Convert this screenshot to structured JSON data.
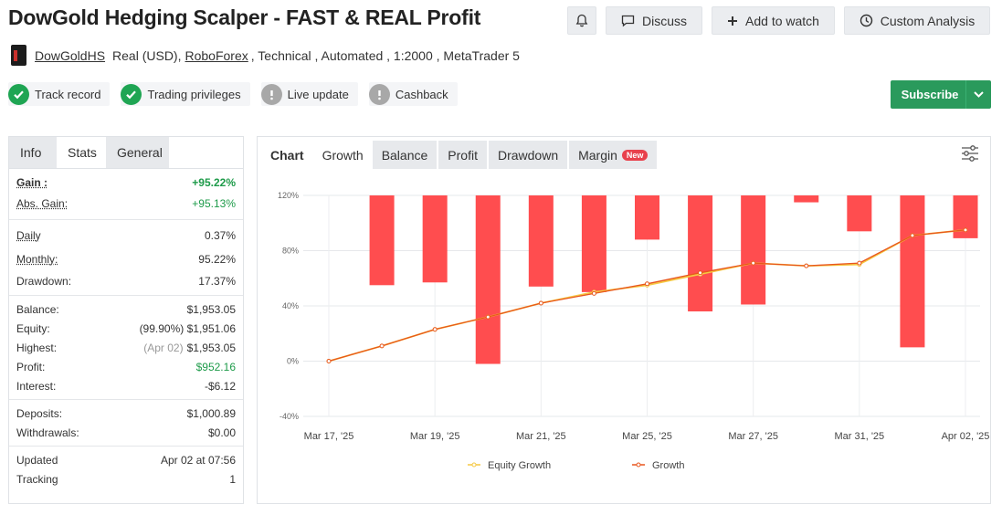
{
  "header": {
    "title": "DowGold Hedging Scalper - FAST & REAL Profit",
    "discuss_label": "Discuss",
    "watch_label": "Add to watch",
    "analysis_label": "Custom Analysis"
  },
  "meta": {
    "author": "DowGoldHS",
    "account": "Real (USD),",
    "broker": "RoboForex",
    "details": ", Technical , Automated , 1:2000 , MetaTrader 5"
  },
  "badges": [
    {
      "label": "Track record",
      "status": "ok"
    },
    {
      "label": "Trading privileges",
      "status": "ok"
    },
    {
      "label": "Live update",
      "status": "warn"
    },
    {
      "label": "Cashback",
      "status": "warn"
    }
  ],
  "subscribe_label": "Subscribe",
  "stats_tabs": [
    "Info",
    "Stats",
    "General"
  ],
  "stats": {
    "gain_label": "Gain :",
    "gain": "+95.22%",
    "abs_gain_label": "Abs. Gain:",
    "abs_gain": "+95.13%",
    "daily_label": "Daily",
    "daily": "0.37%",
    "monthly_label": "Monthly:",
    "monthly": "95.22%",
    "drawdown_label": "Drawdown:",
    "drawdown": "17.37%",
    "balance_label": "Balance:",
    "balance": "$1,953.05",
    "equity_label": "Equity:",
    "equity_pct": "(99.90%)",
    "equity": "$1,951.06",
    "highest_label": "Highest:",
    "highest_date": "(Apr 02)",
    "highest": "$1,953.05",
    "profit_label": "Profit:",
    "profit": "$952.16",
    "interest_label": "Interest:",
    "interest": "-$6.12",
    "deposits_label": "Deposits:",
    "deposits": "$1,000.89",
    "withdrawals_label": "Withdrawals:",
    "withdrawals": "$0.00",
    "updated_label": "Updated",
    "updated": "Apr 02 at 07:56",
    "tracking_label": "Tracking",
    "tracking": "1"
  },
  "chart_tabs": {
    "chart": "Chart",
    "growth": "Growth",
    "balance": "Balance",
    "profit": "Profit",
    "drawdown": "Drawdown",
    "margin": "Margin",
    "new": "New"
  },
  "colors": {
    "accent_green": "#2a9a5c",
    "bar_red": "#ff4d4f",
    "equity_line": "#f5c842",
    "growth_line": "#e8561e"
  },
  "chart_data": {
    "type": "line",
    "y_ticks": [
      "120%",
      "80%",
      "40%",
      "0%",
      "-40%"
    ],
    "ylim": [
      -40,
      120
    ],
    "x_ticks": [
      "Mar 17, '25",
      "Mar 19, '25",
      "Mar 21, '25",
      "Mar 25, '25",
      "Mar 27, '25",
      "Mar 31, '25",
      "Apr 02, '25"
    ],
    "x_tick_index": [
      0,
      2,
      4,
      6,
      8,
      10,
      12
    ],
    "bars": [
      {
        "index": 1,
        "top": 120,
        "bottom": 55
      },
      {
        "index": 2,
        "top": 120,
        "bottom": 57
      },
      {
        "index": 3,
        "top": 120,
        "bottom": -2
      },
      {
        "index": 4,
        "top": 120,
        "bottom": 54
      },
      {
        "index": 5,
        "top": 120,
        "bottom": 50
      },
      {
        "index": 6,
        "top": 120,
        "bottom": 88
      },
      {
        "index": 7,
        "top": 120,
        "bottom": 36
      },
      {
        "index": 8,
        "top": 120,
        "bottom": 41
      },
      {
        "index": 9,
        "top": 120,
        "bottom": 115
      },
      {
        "index": 10,
        "top": 120,
        "bottom": 94
      },
      {
        "index": 11,
        "top": 120,
        "bottom": 10
      },
      {
        "index": 12,
        "top": 120,
        "bottom": 89
      }
    ],
    "series": [
      {
        "name": "Equity Growth",
        "values": [
          0,
          11,
          23,
          32,
          42,
          50,
          55,
          63,
          71,
          69,
          70,
          91,
          95
        ]
      },
      {
        "name": "Growth",
        "values": [
          0,
          11,
          23,
          32,
          42,
          49,
          56,
          64,
          71,
          69,
          71,
          91,
          95
        ]
      }
    ]
  }
}
